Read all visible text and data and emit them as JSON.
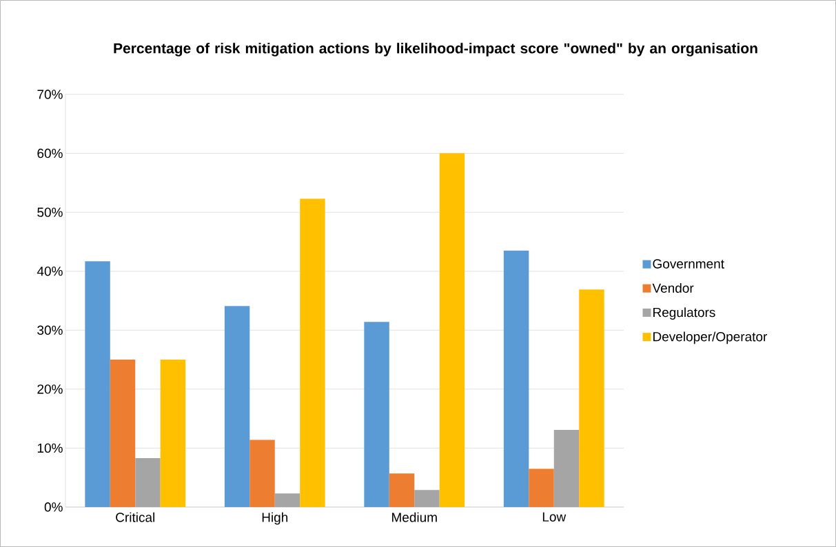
{
  "chart_data": {
    "type": "bar",
    "title": "**Percentage of risk mitigation actions by likelihood-impact score \"owned\" by an organisation**",
    "categories": [
      "Critical",
      "High",
      "Medium",
      "Low"
    ],
    "series": [
      {
        "name": "Government",
        "color": "#5b9bd5",
        "values": [
          41.7,
          34.1,
          31.4,
          43.5
        ]
      },
      {
        "name": "Vendor",
        "color": "#ed7d31",
        "values": [
          25.0,
          11.4,
          5.7,
          6.5
        ]
      },
      {
        "name": "Regulators",
        "color": "#a5a5a5",
        "values": [
          8.3,
          2.3,
          2.9,
          13.1
        ]
      },
      {
        "name": "Developer/Operator",
        "color": "#ffc000",
        "values": [
          25.0,
          52.3,
          60.0,
          36.9
        ]
      }
    ],
    "ylim": [
      0,
      70
    ],
    "yticks": [
      {
        "value": 0,
        "label": "0%"
      },
      {
        "value": 10,
        "label": "10%"
      },
      {
        "value": 20,
        "label": "20%"
      },
      {
        "value": 30,
        "label": "30%"
      },
      {
        "value": 40,
        "label": "40%"
      },
      {
        "value": 50,
        "label": "50%"
      },
      {
        "value": 60,
        "label": "60%"
      },
      {
        "value": 70,
        "label": "70%"
      }
    ],
    "grid": "y",
    "legend": "right"
  }
}
